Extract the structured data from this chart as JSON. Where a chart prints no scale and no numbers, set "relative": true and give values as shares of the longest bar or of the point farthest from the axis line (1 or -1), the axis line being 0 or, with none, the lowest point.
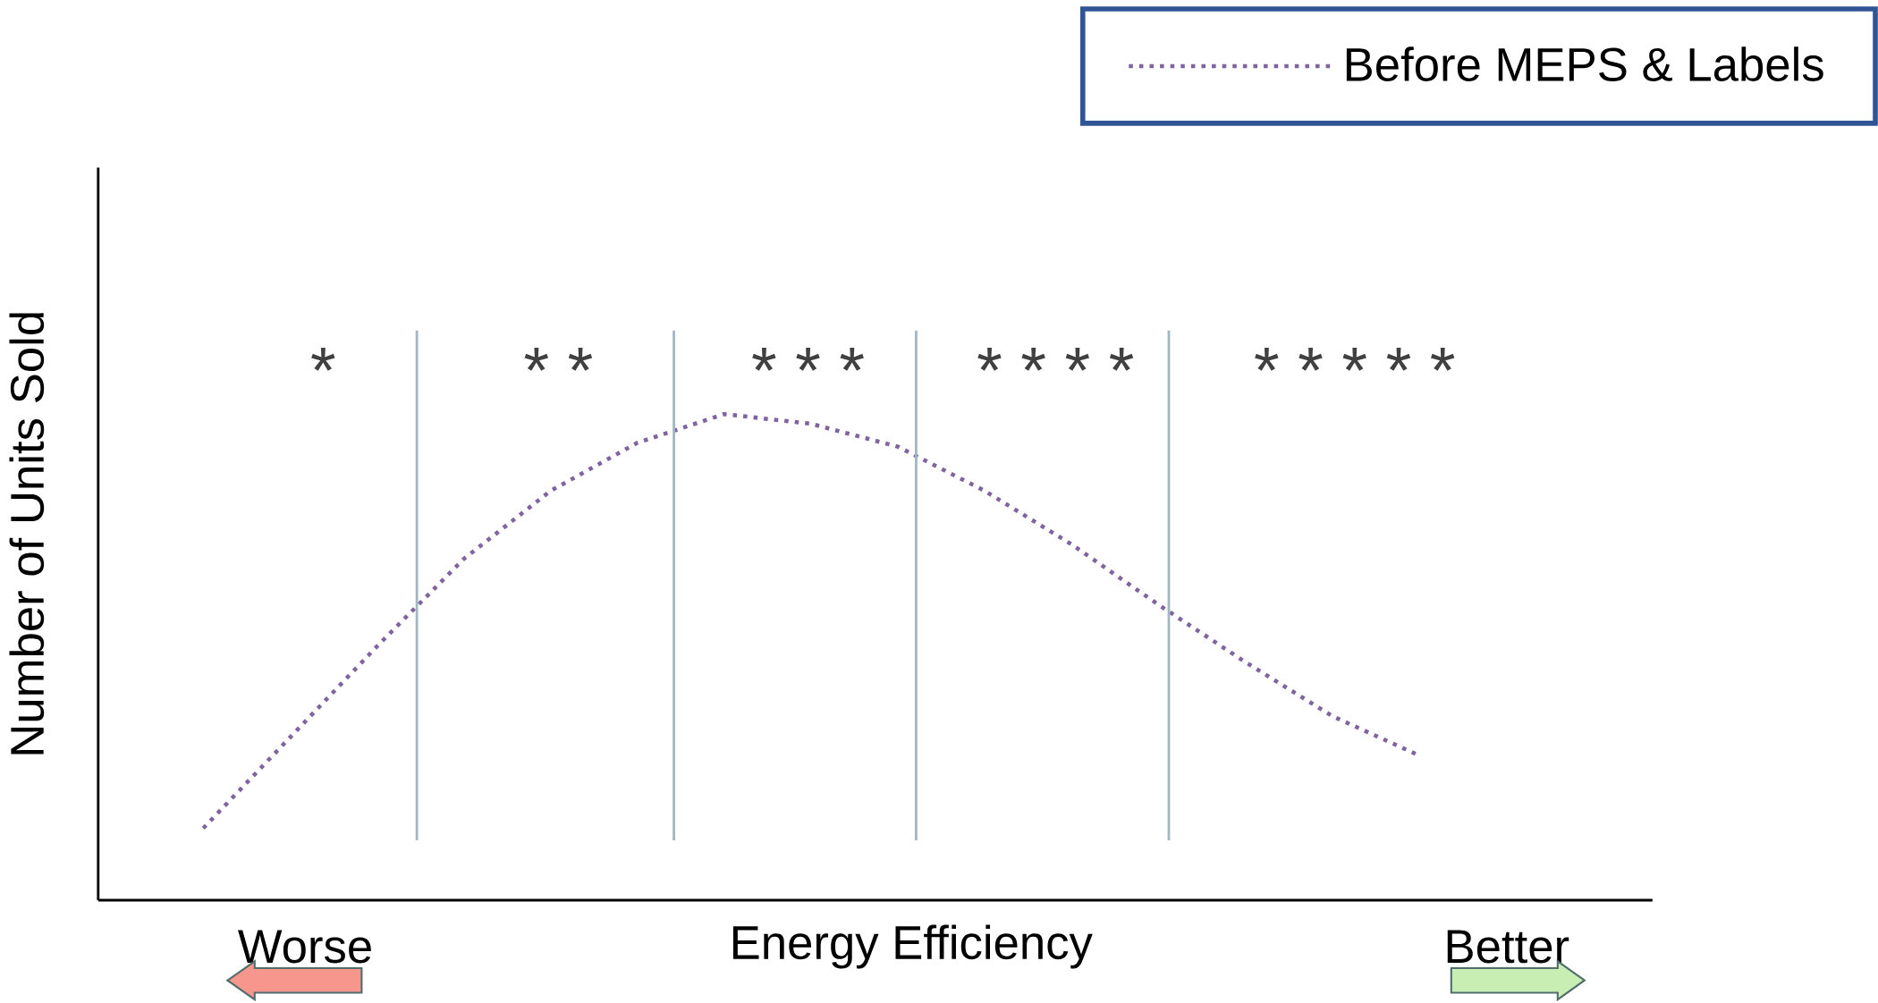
{
  "chart_data": {
    "type": "line",
    "relative": true,
    "xlabel": "Energy Efficiency",
    "ylabel": "Number of Units Sold",
    "categories": [
      null,
      null,
      null,
      null,
      null,
      null,
      null,
      null,
      null,
      null,
      null,
      null,
      null,
      null,
      null
    ],
    "series": [
      {
        "name": "Before MEPS & Labels",
        "color": "#8064a2",
        "values": [
          0.148,
          0.335,
          0.522,
          0.702,
          0.842,
          0.941,
          1.0,
          0.98,
          0.933,
          0.842,
          0.732,
          0.608,
          0.49,
          0.379,
          0.298
        ]
      }
    ],
    "line_style": "dotted",
    "marker": "none",
    "legend": "top right",
    "annotations": [
      "*",
      "* *",
      "* * *",
      "* * * *",
      "* * * * *",
      "Worse",
      "Better"
    ]
  }
}
